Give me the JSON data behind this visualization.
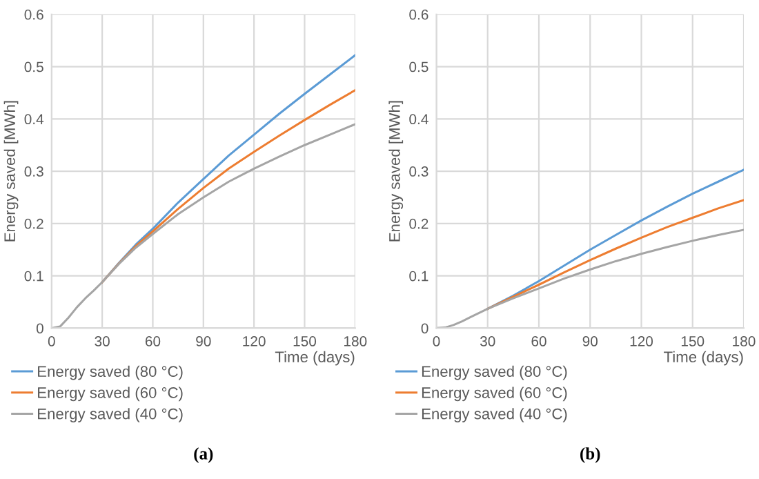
{
  "chart_data": [
    {
      "type": "line",
      "xlabel": "Time (days)",
      "ylabel": "Energy saved [MWh]",
      "xlim": [
        0,
        180
      ],
      "xticks": [
        0,
        30,
        60,
        90,
        120,
        150,
        180
      ],
      "ylim": [
        0,
        0.6
      ],
      "yticks": [
        0,
        0.1,
        0.2,
        0.3,
        0.4,
        0.5,
        0.6
      ],
      "grid": true,
      "legend": "bottom left",
      "annotations": [
        "(a)"
      ],
      "x": [
        0,
        5,
        10,
        15,
        20,
        25,
        30,
        40,
        50,
        60,
        75,
        90,
        105,
        120,
        135,
        150,
        165,
        180
      ],
      "series": [
        {
          "name": "Energy saved (80 °C)",
          "color": "#5b9bd5",
          "values": [
            null,
            null,
            null,
            null,
            null,
            null,
            0.088,
            0.125,
            0.16,
            0.19,
            0.24,
            0.285,
            0.33,
            0.37,
            0.41,
            0.448,
            0.485,
            0.522
          ]
        },
        {
          "name": "Energy saved (60 °C)",
          "color": "#ed7d31",
          "values": [
            null,
            null,
            null,
            null,
            null,
            null,
            0.088,
            0.124,
            0.157,
            0.185,
            0.228,
            0.268,
            0.305,
            0.337,
            0.368,
            0.398,
            0.427,
            0.455
          ]
        },
        {
          "name": "Energy saved (40 °C)",
          "color": "#a5a5a5",
          "values": [
            0,
            0.003,
            0.02,
            0.04,
            0.057,
            0.072,
            0.088,
            0.123,
            0.154,
            0.18,
            0.218,
            0.25,
            0.28,
            0.305,
            0.328,
            0.35,
            0.37,
            0.39
          ]
        }
      ]
    },
    {
      "type": "line",
      "xlabel": "Time (days)",
      "ylabel": "Energy saved [MWh]",
      "xlim": [
        0,
        180
      ],
      "xticks": [
        0,
        30,
        60,
        90,
        120,
        150,
        180
      ],
      "ylim": [
        0,
        0.6
      ],
      "yticks": [
        0,
        0.1,
        0.2,
        0.3,
        0.4,
        0.5,
        0.6
      ],
      "grid": true,
      "legend": "bottom left",
      "annotations": [
        "(b)"
      ],
      "x": [
        0,
        5,
        10,
        15,
        20,
        25,
        30,
        45,
        60,
        75,
        90,
        105,
        120,
        135,
        150,
        165,
        180
      ],
      "series": [
        {
          "name": "Energy saved (80 °C)",
          "color": "#5b9bd5",
          "values": [
            null,
            null,
            null,
            null,
            null,
            null,
            0.037,
            0.062,
            0.09,
            0.12,
            0.15,
            0.178,
            0.206,
            0.232,
            0.257,
            0.28,
            0.303
          ]
        },
        {
          "name": "Energy saved (60 °C)",
          "color": "#ed7d31",
          "values": [
            null,
            null,
            null,
            null,
            null,
            null,
            0.037,
            0.06,
            0.083,
            0.107,
            0.13,
            0.152,
            0.173,
            0.193,
            0.211,
            0.229,
            0.245
          ]
        },
        {
          "name": "Energy saved (40 °C)",
          "color": "#a5a5a5",
          "values": [
            0,
            0.001,
            0.006,
            0.013,
            0.021,
            0.029,
            0.037,
            0.057,
            0.076,
            0.095,
            0.112,
            0.128,
            0.142,
            0.155,
            0.167,
            0.178,
            0.188
          ]
        }
      ]
    }
  ]
}
